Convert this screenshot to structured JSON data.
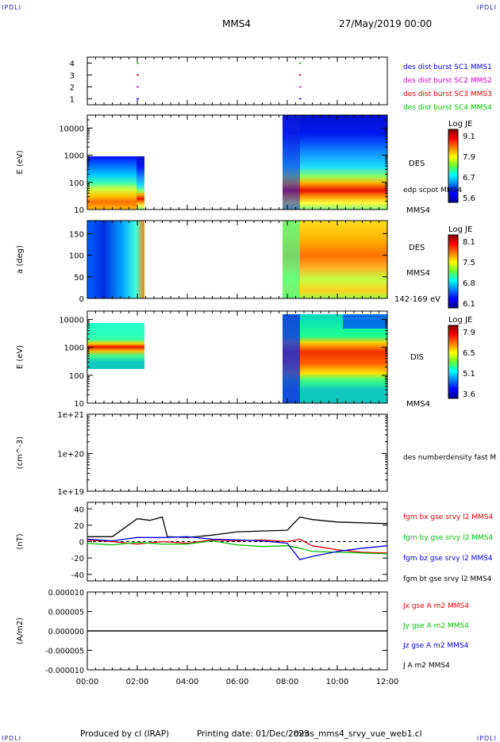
{
  "header": {
    "corner_left_top": "IPDLI",
    "corner_right_top": "IPDLI",
    "corner_left_bottom": "IPDLI",
    "corner_right_bottom": "IPDLI",
    "spacecraft": "MMS4",
    "datetime": "27/May/2019 00:00"
  },
  "footer": {
    "produced_by": "Produced by cl (IRAP)",
    "printing_date": "Printing date: 01/Dec/2023",
    "script_name": "mms_mms4_srvy_vue_web1.cl"
  },
  "colors": {
    "blue": "#0000e0",
    "magenta": "#d000d0",
    "red": "#e00000",
    "green": "#00c000",
    "black": "#000000"
  },
  "chart_data": [
    {
      "id": "burst",
      "type": "scatter",
      "ylim": [
        0.5,
        4.5
      ],
      "yticks": [
        "1",
        "2",
        "3",
        "4"
      ],
      "series": [
        {
          "name": "des dist burst SC1 MMS1",
          "color": "#0000e0",
          "y": 1,
          "x": [
            2.0,
            8.5
          ]
        },
        {
          "name": "des dist burst SC2 MMS2",
          "color": "#d000d0",
          "y": 2,
          "x": [
            2.0,
            8.5
          ]
        },
        {
          "name": "des dist burst SC3 MMS3",
          "color": "#e00000",
          "y": 3,
          "x": [
            2.0,
            8.5
          ]
        },
        {
          "name": "des dist burst SC4 MMS4",
          "color": "#00c000",
          "y": 4,
          "x": [
            2.0,
            8.5
          ]
        }
      ]
    },
    {
      "id": "des-energy",
      "type": "heatmap",
      "ylabel": "E (eV)",
      "yscale": "log",
      "ylim": [
        10,
        30000
      ],
      "yticks": [
        "10",
        "100",
        "1000",
        "10000"
      ],
      "label": "DES",
      "sublabel": "edp scpot MMS4",
      "bottom_label": "MMS4",
      "colorbar": {
        "title": "Log JE",
        "ticks": [
          "9.1",
          "7.9",
          "6.7",
          "5.6"
        ]
      }
    },
    {
      "id": "des-pitch",
      "type": "heatmap",
      "ylabel": "a (deg)",
      "ylim": [
        0,
        180
      ],
      "yticks": [
        "0",
        "50",
        "100",
        "150"
      ],
      "label": "DES",
      "sublabel": "MMS4",
      "bottom_label": "142-169 eV",
      "colorbar": {
        "title": "Log JE",
        "ticks": [
          "8.1",
          "7.5",
          "6.8",
          "6.1"
        ]
      }
    },
    {
      "id": "dis-energy",
      "type": "heatmap",
      "ylabel": "E (eV)",
      "yscale": "log",
      "ylim": [
        10,
        20000
      ],
      "yticks": [
        "10",
        "100",
        "1000",
        "10000"
      ],
      "label": "DIS",
      "bottom_label": "MMS4",
      "colorbar": {
        "title": "Log JE",
        "ticks": [
          "7.9",
          "6.5",
          "5.1",
          "3.6"
        ]
      }
    },
    {
      "id": "density",
      "type": "line",
      "ylabel": "(cm^-3)",
      "yscale": "log",
      "yticks": [
        "1e+19",
        "1e+20",
        "1e+21"
      ],
      "series": [
        {
          "name": "des numberdensity fast M",
          "color": "#000000",
          "values": []
        }
      ]
    },
    {
      "id": "fgm",
      "type": "line",
      "ylabel": "(nT)",
      "ylim": [
        -48,
        48
      ],
      "yticks": [
        "-40",
        "-20",
        "0",
        "20",
        "40"
      ],
      "series": [
        {
          "name": "fgm bx gse srvy l2 MMS4",
          "color": "#e00000",
          "x": [
            0,
            1,
            2,
            3,
            4,
            5,
            6,
            7,
            8,
            8.5,
            9,
            10,
            11,
            12
          ],
          "values": [
            2,
            0,
            -3,
            0,
            -2,
            2,
            1,
            2,
            0,
            3,
            -5,
            -10,
            -13,
            -14
          ]
        },
        {
          "name": "fgm by gse srvy l2 MMS4",
          "color": "#00c000",
          "x": [
            0,
            1,
            2,
            3,
            4,
            5,
            6,
            7,
            8,
            8.5,
            9,
            10,
            11,
            12
          ],
          "values": [
            -2,
            -4,
            -1,
            -3,
            -3,
            1,
            -4,
            -6,
            -5,
            -8,
            -12,
            -13,
            -14,
            -15
          ]
        },
        {
          "name": "fgm bz gse srvy l2 MMS4",
          "color": "#0000e0",
          "x": [
            0,
            1,
            2,
            3,
            4,
            5,
            6,
            7,
            8,
            8.5,
            9,
            10,
            11,
            12
          ],
          "values": [
            3,
            1,
            5,
            5,
            6,
            3,
            2,
            1,
            -2,
            -22,
            -18,
            -12,
            -8,
            -5
          ]
        },
        {
          "name": "fgm bt gse srvy l2 MMS4",
          "color": "#000000",
          "x": [
            0,
            1,
            2,
            2.5,
            3,
            3.2,
            4,
            5,
            6,
            7,
            8,
            8.5,
            9,
            10,
            11,
            12
          ],
          "values": [
            6,
            6,
            28,
            26,
            30,
            6,
            5,
            8,
            12,
            13,
            14,
            30,
            27,
            24,
            23,
            22
          ]
        }
      ]
    },
    {
      "id": "current",
      "type": "line",
      "ylabel": "(A/m2)",
      "ylim": [
        -1e-05,
        1e-05
      ],
      "yticks": [
        "-0.000010",
        "-0.000005",
        "0.000000",
        "0.000005",
        "0.000010"
      ],
      "series": [
        {
          "name": "Jx gse A m2 MMS4",
          "color": "#e00000"
        },
        {
          "name": "Jy gse A m2 MMS4",
          "color": "#00c000"
        },
        {
          "name": "Jz gse A m2 MMS4",
          "color": "#0000e0"
        },
        {
          "name": "J A m2 MMS4",
          "color": "#000000"
        }
      ]
    }
  ],
  "xaxis": {
    "xlim": [
      0,
      12
    ],
    "ticks": [
      "00:00",
      "02:00",
      "04:00",
      "06:00",
      "08:00",
      "10:00",
      "12:00"
    ]
  }
}
